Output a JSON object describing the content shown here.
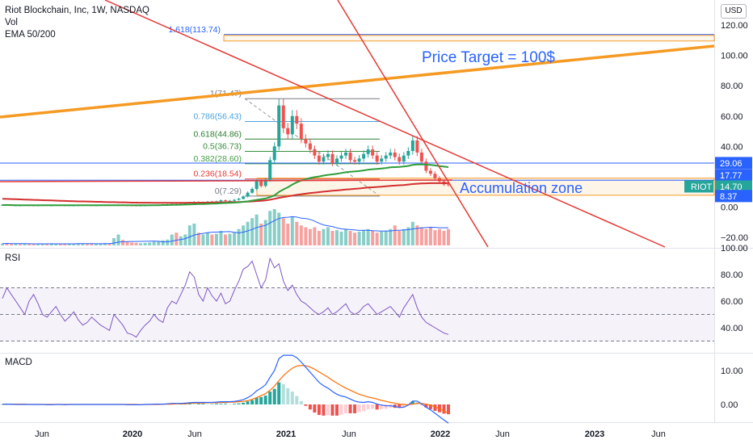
{
  "legend": {
    "title": "Riot Blockchain, Inc, 1W, NASDAQ",
    "vol": "Vol",
    "ema": "EMA 50/200"
  },
  "currency": "USD",
  "colors": {
    "up": "#26a69a",
    "down": "#ef5350",
    "trend_red": "#e53935",
    "trend_orange": "#f59a23",
    "annotation_blue": "#2962ff",
    "ema50": "#2e9e3a",
    "ema200": "#d32f2f",
    "rsi": "#7e57c2",
    "macd": "#2962ff",
    "signal": "#ff6d00"
  },
  "annotations": {
    "price_target": "Price Target = 100$",
    "accumulation": "Accumulation zone"
  },
  "price_badges": [
    {
      "value": "29.06",
      "color": "#2962ff"
    },
    {
      "value": "17.77",
      "color": "#2962ff"
    },
    {
      "value": "14.70",
      "color": "#26a69a",
      "ticker": "RIOT"
    },
    {
      "value": "8.37",
      "color": "#2962ff"
    }
  ],
  "panes": {
    "rsi": "RSI",
    "macd": "MACD"
  },
  "chart_data": {
    "type": "candlestick",
    "x_labels": [
      "Jun",
      "2020",
      "Jun",
      "2021",
      "Jun",
      "2022",
      "Jun",
      "2023",
      "Jun"
    ],
    "price_axis": {
      "ticks": [
        "120.00",
        "100.00",
        "80.00",
        "60.00",
        "40.00",
        "20.00",
        "0.00",
        "−20.00"
      ],
      "ylim": [
        -20,
        120
      ]
    },
    "fibonacci": [
      {
        "level": "1.618(113.74)",
        "value": 113.74,
        "color": "#2962ff"
      },
      {
        "level": "1(71.47)",
        "value": 71.47,
        "color": "#787b86"
      },
      {
        "level": "0.786(56.43)",
        "value": 56.43,
        "color": "#4aa3df"
      },
      {
        "level": "0.618(44.86)",
        "value": 44.86,
        "color": "#2e7d32"
      },
      {
        "level": "0.5(36.73)",
        "value": 36.73,
        "color": "#388e3c"
      },
      {
        "level": "0.382(28.60)",
        "value": 28.6,
        "color": "#43a047"
      },
      {
        "level": "0.236(18.54)",
        "value": 18.54,
        "color": "#e53935"
      },
      {
        "level": "0(7.29)",
        "value": 7.29,
        "color": "#787b86"
      }
    ],
    "price": [
      1.5,
      1.3,
      1.2,
      1.2,
      1.1,
      1.3,
      1.2,
      1.1,
      1.2,
      1.3,
      1.2,
      1.2,
      1.3,
      1.2,
      1.1,
      1.2,
      1.2,
      1.3,
      1.4,
      1.3,
      1.2,
      1.2,
      1.3,
      1.3,
      1.2,
      1.4,
      1.5,
      1.3,
      1.2,
      1.1,
      1.0,
      1.1,
      1.2,
      1.3,
      1.4,
      1.5,
      1.6,
      1.8,
      2.0,
      1.9,
      2.2,
      2.5,
      3.0,
      3.4,
      3.0,
      3.2,
      3.6,
      3.4,
      3.8,
      4.5,
      4.0,
      4.2,
      4.8,
      5.5,
      7.0,
      9.5,
      12.0,
      17.0,
      14.0,
      18.0,
      31.0,
      40.0,
      67.0,
      52.0,
      48.0,
      60.0,
      55.0,
      45.0,
      42.0,
      38.0,
      34.0,
      30.0,
      33.0,
      35.0,
      29.0,
      32.0,
      34.0,
      36.0,
      31.0,
      30.0,
      32.0,
      35.0,
      38.0,
      34.0,
      30.0,
      32.0,
      34.0,
      36.0,
      33.0,
      30.0,
      34.0,
      37.0,
      44.0,
      36.0,
      30.0,
      24.0,
      22.0,
      19.0,
      17.0,
      15.0,
      14.7
    ],
    "ema50": [
      1.4,
      1.4,
      1.4,
      1.3,
      1.3,
      1.3,
      1.3,
      1.3,
      1.3,
      1.3,
      1.3,
      1.3,
      1.3,
      1.3,
      1.3,
      1.3,
      1.3,
      1.3,
      1.3,
      1.3,
      1.3,
      1.3,
      1.3,
      1.3,
      1.3,
      1.3,
      1.3,
      1.3,
      1.3,
      1.3,
      1.3,
      1.3,
      1.3,
      1.3,
      1.3,
      1.3,
      1.4,
      1.4,
      1.5,
      1.5,
      1.6,
      1.7,
      1.8,
      1.9,
      2.0,
      2.1,
      2.2,
      2.3,
      2.4,
      2.6,
      2.7,
      2.8,
      3.0,
      3.2,
      3.5,
      3.8,
      4.3,
      4.8,
      5.2,
      5.7,
      6.6,
      7.7,
      10.0,
      11.7,
      13.1,
      14.9,
      16.4,
      17.5,
      18.4,
      19.2,
      19.8,
      20.2,
      20.8,
      21.3,
      21.6,
      22.0,
      22.5,
      23.0,
      23.3,
      23.5,
      23.8,
      24.2,
      24.7,
      25.0,
      25.2,
      25.5,
      25.8,
      26.2,
      26.4,
      26.5,
      26.8,
      27.2,
      27.8,
      28.1,
      28.2,
      28.0,
      27.8,
      27.5,
      27.1,
      26.7,
      26.4
    ],
    "ema200": [
      5.5,
      5.4,
      5.3,
      5.2,
      5.1,
      5.0,
      4.9,
      4.8,
      4.7,
      4.6,
      4.5,
      4.4,
      4.3,
      4.2,
      4.1,
      4.0,
      3.9,
      3.8,
      3.8,
      3.7,
      3.6,
      3.5,
      3.5,
      3.4,
      3.3,
      3.3,
      3.2,
      3.2,
      3.1,
      3.0,
      3.0,
      2.9,
      2.9,
      2.9,
      2.8,
      2.8,
      2.8,
      2.8,
      2.8,
      2.8,
      2.8,
      2.8,
      2.9,
      2.9,
      2.9,
      3.0,
      3.0,
      3.1,
      3.1,
      3.2,
      3.2,
      3.3,
      3.3,
      3.4,
      3.5,
      3.6,
      3.8,
      4.0,
      4.2,
      4.4,
      4.9,
      5.5,
      6.1,
      6.6,
      7.1,
      7.6,
      8.1,
      8.5,
      8.9,
      9.3,
      9.6,
      9.9,
      10.2,
      10.5,
      10.8,
      11.0,
      11.3,
      11.6,
      11.8,
      12.1,
      12.3,
      12.6,
      12.9,
      13.1,
      13.3,
      13.5,
      13.7,
      14.0,
      14.2,
      14.4,
      14.6,
      14.9,
      15.2,
      15.4,
      15.6,
      15.7,
      15.8,
      15.8,
      15.8,
      15.8,
      15.8
    ],
    "volume": [
      0.05,
      0.06,
      0.04,
      0.05,
      0.04,
      0.05,
      0.04,
      0.03,
      0.04,
      0.05,
      0.04,
      0.06,
      0.05,
      0.04,
      0.05,
      0.04,
      0.05,
      0.06,
      0.05,
      0.04,
      0.05,
      0.04,
      0.05,
      0.06,
      0.05,
      0.2,
      0.3,
      0.15,
      0.1,
      0.08,
      0.07,
      0.06,
      0.07,
      0.08,
      0.1,
      0.12,
      0.14,
      0.16,
      0.3,
      0.35,
      0.25,
      0.3,
      0.55,
      0.6,
      0.35,
      0.3,
      0.35,
      0.3,
      0.32,
      0.4,
      0.3,
      0.32,
      0.35,
      0.45,
      0.55,
      0.65,
      0.75,
      0.85,
      0.6,
      0.7,
      0.95,
      1.0,
      0.9,
      0.75,
      0.6,
      0.8,
      0.65,
      0.55,
      0.5,
      0.45,
      0.5,
      0.4,
      0.45,
      0.5,
      0.4,
      0.42,
      0.38,
      0.45,
      0.4,
      0.35,
      0.38,
      0.42,
      0.45,
      0.4,
      0.35,
      0.38,
      0.4,
      0.45,
      0.55,
      0.4,
      0.45,
      0.5,
      0.65,
      0.55,
      0.5,
      0.45,
      0.5,
      0.42,
      0.45,
      0.4,
      0.45
    ],
    "rsi": {
      "ticks": [
        "100.00",
        "80.00",
        "60.00",
        "40.00"
      ],
      "ylim": [
        20,
        100
      ],
      "bands": [
        30,
        50,
        70
      ],
      "values": [
        62,
        70,
        65,
        60,
        55,
        50,
        60,
        65,
        58,
        50,
        48,
        52,
        56,
        50,
        45,
        48,
        52,
        46,
        42,
        44,
        48,
        45,
        42,
        40,
        38,
        50,
        46,
        42,
        36,
        35,
        33,
        38,
        42,
        45,
        50,
        46,
        44,
        55,
        60,
        58,
        65,
        72,
        82,
        78,
        65,
        60,
        70,
        64,
        60,
        66,
        58,
        60,
        68,
        75,
        84,
        86,
        90,
        80,
        70,
        76,
        92,
        85,
        88,
        75,
        68,
        72,
        65,
        60,
        58,
        55,
        52,
        50,
        52,
        55,
        50,
        52,
        55,
        58,
        52,
        50,
        52,
        56,
        58,
        54,
        50,
        52,
        54,
        56,
        52,
        48,
        55,
        60,
        65,
        55,
        48,
        44,
        42,
        40,
        38,
        36,
        35
      ]
    },
    "macd": {
      "ticks": [
        "10.00",
        "0.00"
      ],
      "ylim": [
        -7,
        17
      ],
      "macd": [
        0.1,
        0.1,
        0.1,
        0.0,
        0.0,
        0.0,
        0.0,
        0.0,
        0.0,
        0.0,
        -0.1,
        -0.1,
        0.0,
        0.0,
        -0.1,
        0.0,
        0.0,
        0.0,
        0.0,
        0.0,
        0.0,
        0.0,
        0.0,
        0.0,
        0.0,
        0.0,
        0.0,
        0.0,
        -0.1,
        -0.1,
        -0.1,
        -0.1,
        0.0,
        0.0,
        0.1,
        0.1,
        0.1,
        0.2,
        0.3,
        0.3,
        0.3,
        0.4,
        0.5,
        0.6,
        0.6,
        0.6,
        0.6,
        0.6,
        0.7,
        0.8,
        0.8,
        0.8,
        0.9,
        1.1,
        1.4,
        2.0,
        2.8,
        4.0,
        4.8,
        5.8,
        8.0,
        10.0,
        13.5,
        14.5,
        14.5,
        14.5,
        13.8,
        12.5,
        11.0,
        9.5,
        8.0,
        6.5,
        5.5,
        4.8,
        3.8,
        3.0,
        2.5,
        2.2,
        1.6,
        1.0,
        0.7,
        0.6,
        0.8,
        0.6,
        0.1,
        -0.2,
        -0.4,
        -0.4,
        -0.6,
        -0.9,
        -0.8,
        -0.2,
        1.0,
        1.0,
        0.2,
        -0.8,
        -1.6,
        -2.6,
        -3.6,
        -4.6,
        -5.5
      ],
      "signal": [
        0.1,
        0.1,
        0.1,
        0.1,
        0.1,
        0.1,
        0.0,
        0.0,
        0.0,
        0.0,
        0.0,
        0.0,
        0.0,
        0.0,
        0.0,
        0.0,
        0.0,
        0.0,
        0.0,
        0.0,
        0.0,
        0.0,
        0.0,
        0.0,
        0.0,
        0.0,
        0.0,
        0.0,
        0.0,
        0.0,
        0.0,
        -0.1,
        0.0,
        0.0,
        0.0,
        0.0,
        0.1,
        0.1,
        0.1,
        0.2,
        0.2,
        0.2,
        0.3,
        0.4,
        0.4,
        0.4,
        0.5,
        0.5,
        0.5,
        0.6,
        0.6,
        0.7,
        0.7,
        0.8,
        0.9,
        1.1,
        1.5,
        2.0,
        2.6,
        3.2,
        4.2,
        5.4,
        7.0,
        8.5,
        9.7,
        10.7,
        11.3,
        11.5,
        11.4,
        11.0,
        10.4,
        9.6,
        8.8,
        8.0,
        7.1,
        6.3,
        5.5,
        4.8,
        4.2,
        3.6,
        3.0,
        2.6,
        2.2,
        1.9,
        1.6,
        1.2,
        0.9,
        0.6,
        0.4,
        0.1,
        0.0,
        -0.1,
        0.1,
        0.3,
        0.3,
        0.1,
        -0.2,
        -0.7,
        -1.3,
        -1.9,
        -2.6
      ]
    }
  }
}
